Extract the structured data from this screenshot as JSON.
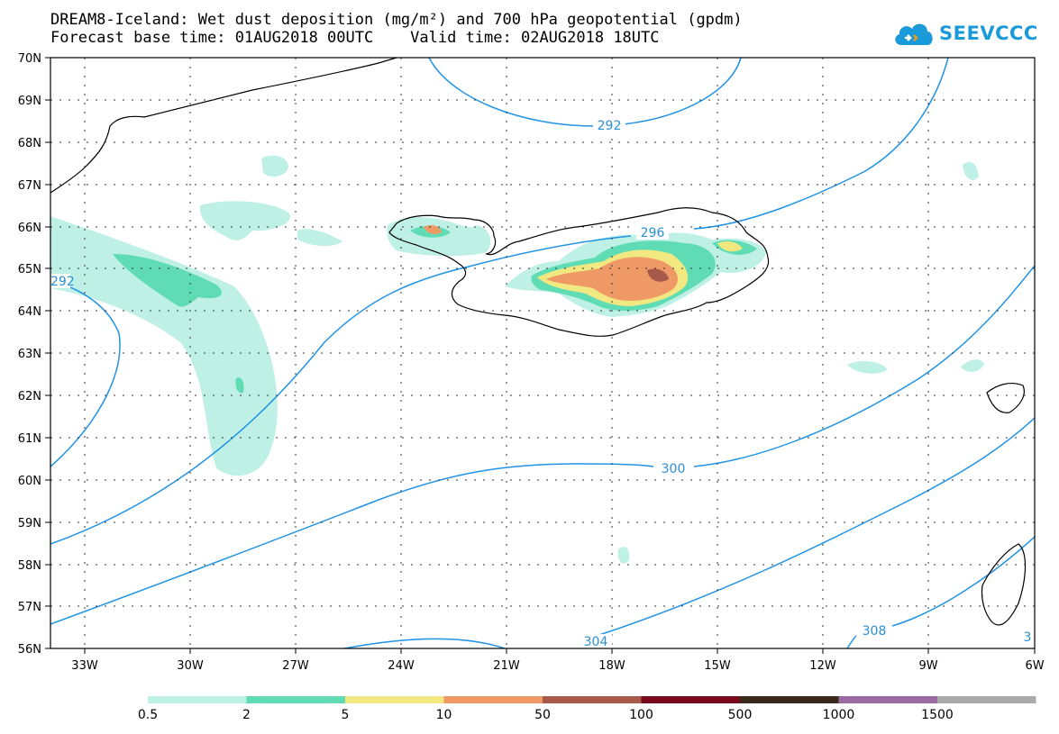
{
  "title": {
    "line1": "DREAM8-Iceland: Wet dust deposition (mg/m²) and 700 hPa geopotential (gpdm)",
    "line2": "Forecast base time: 01AUG2018 00UTC    Valid time: 02AUG2018 18UTC"
  },
  "logo": {
    "text": "SEEVCCC",
    "icon": "cloud-logo-icon"
  },
  "axes": {
    "lon_ticks": [
      "33W",
      "30W",
      "27W",
      "24W",
      "21W",
      "18W",
      "15W",
      "12W",
      "9W",
      "6W"
    ],
    "lat_ticks": [
      "70N",
      "69N",
      "68N",
      "67N",
      "66N",
      "65N",
      "64N",
      "63N",
      "62N",
      "61N",
      "60N",
      "59N",
      "58N",
      "57N",
      "56N"
    ],
    "lon_range": [
      -34.4,
      -6
    ],
    "lat_range": [
      56,
      70
    ]
  },
  "contours": {
    "labels": [
      "292",
      "292",
      "296",
      "300",
      "304",
      "308",
      "3"
    ],
    "color": "#1f93e6"
  },
  "legend": {
    "labels": [
      "0.5",
      "2",
      "5",
      "10",
      "50",
      "100",
      "500",
      "1000",
      "1500"
    ],
    "colors": [
      "#bff0e6",
      "#5fdcb3",
      "#f2e882",
      "#ee9966",
      "#a85a4a",
      "#7a0a20",
      "#3a2a1a",
      "#9a6aa3",
      "#aaaaaa"
    ]
  },
  "colors": {
    "land_outline": "#000000",
    "grid": "#333333"
  }
}
